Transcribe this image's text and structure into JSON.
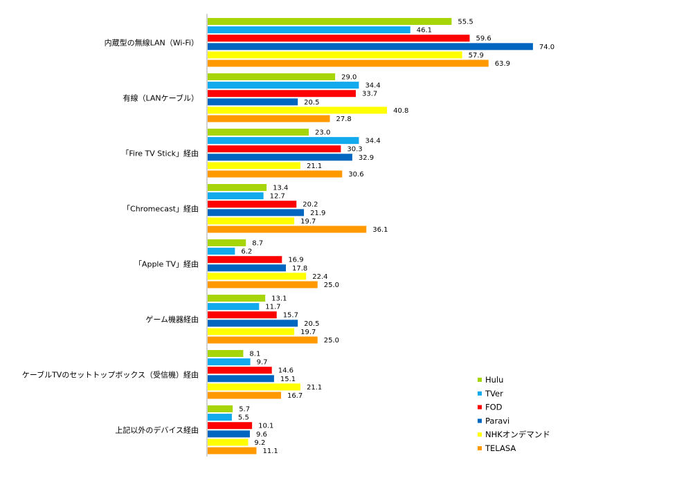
{
  "chart_data": {
    "type": "bar",
    "orientation": "horizontal",
    "title": "",
    "xlabel": "",
    "ylabel": "",
    "xlim": [
      0,
      80
    ],
    "grid": false,
    "legend": "bottom-right",
    "categories": [
      "内蔵型の無線LAN（Wi-Fi）",
      "有線（LANケーブル）",
      "「Fire TV Stick」経由",
      "「Chromecast」経由",
      "「Apple TV」経由",
      "ゲーム機器経由",
      "ケーブルTVのセットトップボックス（受信機）経由",
      "上記以外のデバイス経由"
    ],
    "series": [
      {
        "name": "Hulu",
        "color": "#a6d60a",
        "values": [
          55.5,
          29.0,
          23.0,
          13.4,
          8.7,
          13.1,
          8.1,
          5.7
        ],
        "labels": [
          "55.5",
          "29.0",
          "23.0",
          "13.4",
          "8.7",
          "13.1",
          "8.1",
          "5.7"
        ]
      },
      {
        "name": "TVer",
        "color": "#12aaed",
        "values": [
          46.1,
          34.4,
          34.4,
          12.7,
          6.2,
          11.7,
          9.7,
          5.5
        ],
        "labels": [
          "46.1",
          "34.4",
          "34.4",
          "12.7",
          "6.2",
          "11.7",
          "9.7",
          "5.5"
        ]
      },
      {
        "name": "FOD",
        "color": "#ff0000",
        "values": [
          59.6,
          33.7,
          30.3,
          20.2,
          16.9,
          15.7,
          14.6,
          10.1
        ],
        "labels": [
          "59.6",
          "33.7",
          "30.3",
          "20.2",
          "16.9",
          "15.7",
          "14.6",
          "10.1"
        ]
      },
      {
        "name": "Paravi",
        "color": "#0066c0",
        "values": [
          74.0,
          20.5,
          32.9,
          21.9,
          17.8,
          20.5,
          15.1,
          9.6
        ],
        "labels": [
          "74.0",
          "20.5",
          "32.9",
          "21.9",
          "17.8",
          "20.5",
          "15.1",
          "9.6"
        ]
      },
      {
        "name": "NHKオンデマンド",
        "color": "#ffff00",
        "values": [
          57.9,
          40.8,
          21.1,
          19.7,
          22.4,
          19.7,
          21.1,
          9.2
        ],
        "labels": [
          "57.9",
          "40.8",
          "21.1",
          "19.7",
          "22.4",
          "19.7",
          "21.1",
          "9.2"
        ]
      },
      {
        "name": "TELASA",
        "color": "#ff9900",
        "values": [
          63.9,
          27.8,
          30.6,
          36.1,
          25.0,
          25.0,
          16.7,
          11.1
        ],
        "labels": [
          "63.9",
          "27.8",
          "30.6",
          "36.1",
          "25.0",
          "25.0",
          "16.7",
          "11.1"
        ]
      }
    ]
  }
}
